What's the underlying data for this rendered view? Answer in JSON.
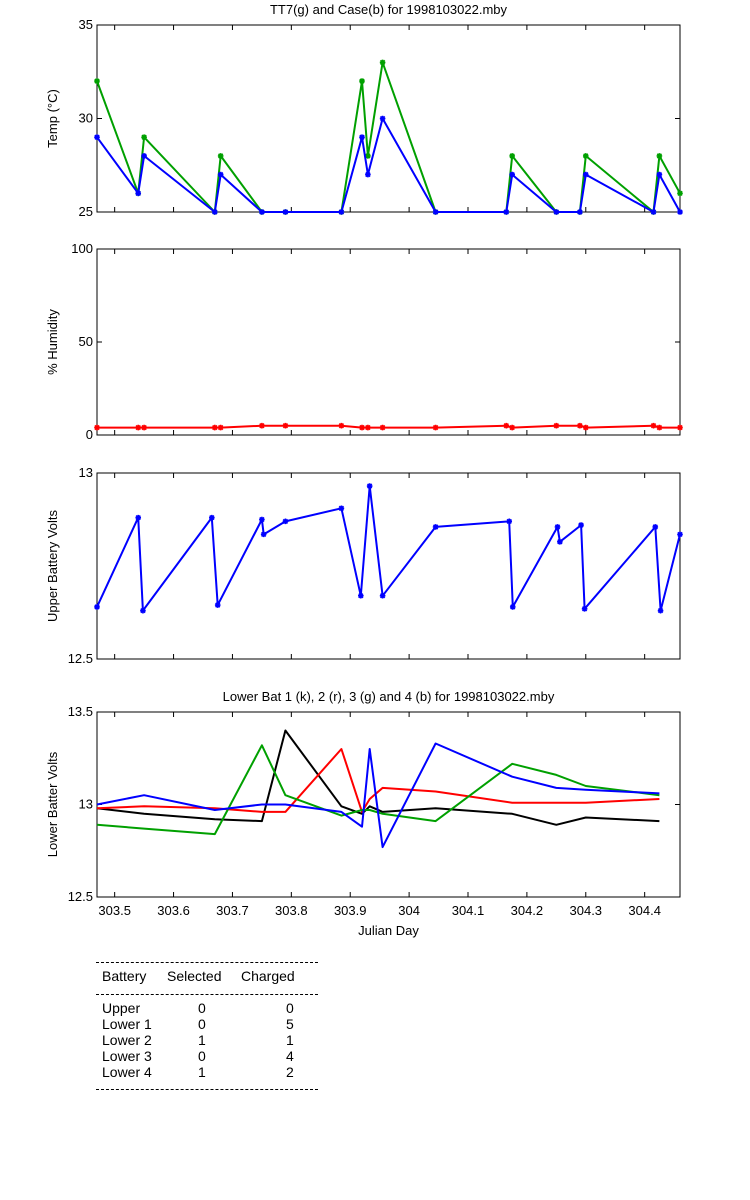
{
  "chart_data": [
    {
      "type": "line",
      "title": "TT7(g) and Case(b) for 1998103022.mby",
      "ylabel": "Temp  (°C)",
      "xlim": [
        303.47,
        304.46
      ],
      "ylim": [
        25,
        35
      ],
      "yticks": [
        25,
        30,
        35
      ],
      "grid": false,
      "series": [
        {
          "color": "#00a000",
          "marker": "*",
          "x": [
            303.47,
            303.54,
            303.55,
            303.67,
            303.68,
            303.75,
            303.79,
            303.885,
            303.92,
            303.93,
            303.955,
            304.045,
            304.165,
            304.175,
            304.25,
            304.29,
            304.3,
            304.415,
            304.425,
            304.46
          ],
          "y": [
            32,
            26,
            29,
            25,
            28,
            25,
            25,
            25,
            32,
            28,
            33,
            25,
            25,
            28,
            25,
            25,
            28,
            25,
            28,
            26
          ]
        },
        {
          "color": "#0000ff",
          "marker": "*",
          "x": [
            303.47,
            303.54,
            303.55,
            303.67,
            303.68,
            303.75,
            303.79,
            303.885,
            303.92,
            303.93,
            303.955,
            304.045,
            304.165,
            304.175,
            304.25,
            304.29,
            304.3,
            304.415,
            304.425,
            304.46
          ],
          "y": [
            29,
            26,
            28,
            25,
            27,
            25,
            25,
            25,
            29,
            27,
            30,
            25,
            25,
            27,
            25,
            25,
            27,
            25,
            27,
            25
          ]
        }
      ]
    },
    {
      "type": "line",
      "ylabel": "% Humidity",
      "xlim": [
        303.47,
        304.46
      ],
      "ylim": [
        0,
        100
      ],
      "yticks": [
        0,
        50,
        100
      ],
      "grid": false,
      "series": [
        {
          "color": "#ff0000",
          "marker": "*",
          "x": [
            303.47,
            303.54,
            303.55,
            303.67,
            303.68,
            303.75,
            303.79,
            303.885,
            303.92,
            303.93,
            303.955,
            304.045,
            304.165,
            304.175,
            304.25,
            304.29,
            304.3,
            304.415,
            304.425,
            304.46
          ],
          "y": [
            4,
            4,
            4,
            4,
            4,
            5,
            5,
            5,
            4,
            4,
            4,
            4,
            5,
            4,
            5,
            5,
            4,
            5,
            4,
            4
          ]
        }
      ]
    },
    {
      "type": "line",
      "ylabel": "Upper Battery Volts",
      "xlim": [
        303.47,
        304.46
      ],
      "ylim": [
        12.5,
        13
      ],
      "yticks": [
        12.5,
        13
      ],
      "grid": false,
      "series": [
        {
          "color": "#0000ff",
          "marker": "*",
          "x": [
            303.47,
            303.54,
            303.548,
            303.665,
            303.675,
            303.75,
            303.753,
            303.79,
            303.885,
            303.918,
            303.933,
            303.955,
            304.045,
            304.17,
            304.176,
            304.252,
            304.256,
            304.292,
            304.298,
            304.418,
            304.427,
            304.46
          ],
          "y": [
            12.64,
            12.88,
            12.63,
            12.88,
            12.645,
            12.875,
            12.835,
            12.87,
            12.905,
            12.67,
            12.965,
            12.67,
            12.855,
            12.87,
            12.64,
            12.855,
            12.815,
            12.86,
            12.635,
            12.855,
            12.63,
            12.835
          ]
        }
      ]
    },
    {
      "type": "line",
      "title": "Lower Bat 1 (k), 2 (r), 3 (g) and 4 (b) for 1998103022.mby",
      "xlabel": "Julian Day",
      "ylabel": "Lower Batter Volts",
      "xlim": [
        303.47,
        304.46
      ],
      "ylim": [
        12.5,
        13.5
      ],
      "yticks": [
        12.5,
        13,
        13.5
      ],
      "xticks": [
        303.5,
        303.6,
        303.7,
        303.8,
        303.9,
        304,
        304.1,
        304.2,
        304.3,
        304.4
      ],
      "xticklabels": [
        "303.5",
        "303.6",
        "303.7",
        "303.8",
        "303.9",
        "304",
        "304.1",
        "304.2",
        "304.3",
        "304.4"
      ],
      "grid": false,
      "series": [
        {
          "name": "1 (k)",
          "color": "#000000",
          "x": [
            303.47,
            303.55,
            303.67,
            303.75,
            303.79,
            303.885,
            303.92,
            303.933,
            303.955,
            304.045,
            304.175,
            304.25,
            304.3,
            304.425
          ],
          "y": [
            12.98,
            12.95,
            12.92,
            12.91,
            13.4,
            12.99,
            12.95,
            12.99,
            12.96,
            12.98,
            12.95,
            12.89,
            12.93,
            12.91
          ]
        },
        {
          "name": "2 (r)",
          "color": "#ff0000",
          "x": [
            303.47,
            303.55,
            303.67,
            303.75,
            303.79,
            303.885,
            303.92,
            303.933,
            303.955,
            304.045,
            304.175,
            304.25,
            304.3,
            304.425
          ],
          "y": [
            12.98,
            12.99,
            12.98,
            12.96,
            12.96,
            13.3,
            12.96,
            13.03,
            13.09,
            13.07,
            13.01,
            13.01,
            13.01,
            13.03
          ]
        },
        {
          "name": "3 (g)",
          "color": "#00a000",
          "x": [
            303.47,
            303.55,
            303.67,
            303.75,
            303.79,
            303.885,
            303.92,
            303.933,
            303.955,
            304.045,
            304.175,
            304.25,
            304.3,
            304.425
          ],
          "y": [
            12.89,
            12.87,
            12.84,
            13.32,
            13.05,
            12.94,
            12.97,
            12.97,
            12.95,
            12.91,
            13.22,
            13.16,
            13.1,
            13.05
          ]
        },
        {
          "name": "4 (b)",
          "color": "#0000ff",
          "x": [
            303.47,
            303.55,
            303.67,
            303.75,
            303.79,
            303.885,
            303.92,
            303.933,
            303.955,
            304.045,
            304.175,
            304.25,
            304.3,
            304.425
          ],
          "y": [
            13.0,
            13.05,
            12.97,
            13.0,
            13.0,
            12.96,
            12.88,
            13.3,
            12.77,
            13.33,
            13.15,
            13.09,
            13.08,
            13.06
          ]
        }
      ]
    }
  ],
  "battery_table": {
    "headers": [
      "Battery",
      "Selected",
      "Charged"
    ],
    "rows": [
      [
        "Upper",
        "0",
        "0"
      ],
      [
        "Lower 1",
        "0",
        "5"
      ],
      [
        "Lower 2",
        "1",
        "1"
      ],
      [
        "Lower 3",
        "0",
        "4"
      ],
      [
        "Lower 4",
        "1",
        "2"
      ]
    ]
  }
}
